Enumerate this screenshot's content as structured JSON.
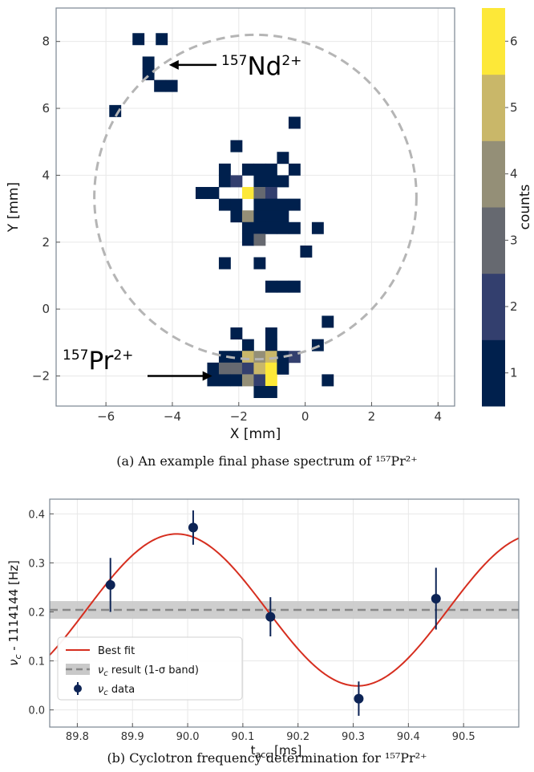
{
  "chart_data": [
    {
      "type": "heatmap",
      "caption": "(a) An example final phase spectrum of ¹⁵⁷Pr²⁺",
      "xlabel": "X [mm]",
      "ylabel": "Y [mm]",
      "xlim": [
        -7.5,
        4.5
      ],
      "ylim": [
        -2.9,
        9.0
      ],
      "xticks": [
        -6,
        -4,
        -2,
        0,
        2,
        4
      ],
      "yticks": [
        -2,
        0,
        2,
        4,
        6,
        8
      ],
      "bin_size": 0.35,
      "colorbar": {
        "label": "counts",
        "ticks": [
          1,
          2,
          3,
          4,
          5,
          6
        ],
        "colors": [
          "#00204d",
          "#333f6e",
          "#666970",
          "#948f77",
          "#c9b769",
          "#fde838"
        ]
      },
      "circle": {
        "center": [
          -1.5,
          3.35
        ],
        "radius": 4.85
      },
      "annotations": [
        {
          "text": "Nd",
          "mass": "157",
          "charge": "2+",
          "point": [
            -4.1,
            7.3
          ]
        },
        {
          "text": "Pr",
          "mass": "157",
          "charge": "2+",
          "point": [
            -2.8,
            -2.0
          ]
        }
      ],
      "cells": [
        [
          -5.2,
          7.9,
          1
        ],
        [
          -4.5,
          7.9,
          1
        ],
        [
          -4.9,
          7.2,
          1
        ],
        [
          -4.9,
          6.85,
          1
        ],
        [
          -4.55,
          6.5,
          1
        ],
        [
          -4.2,
          6.5,
          1
        ],
        [
          -5.9,
          5.75,
          1
        ],
        [
          -0.5,
          5.4,
          1
        ],
        [
          -2.25,
          4.7,
          1
        ],
        [
          -0.85,
          4.35,
          1
        ],
        [
          -2.6,
          4.0,
          1
        ],
        [
          -1.9,
          4.0,
          1
        ],
        [
          -1.55,
          4.0,
          1
        ],
        [
          -1.2,
          4.0,
          1
        ],
        [
          -0.5,
          4.0,
          1
        ],
        [
          -2.6,
          3.65,
          1
        ],
        [
          -2.25,
          3.65,
          2
        ],
        [
          -1.55,
          3.65,
          1
        ],
        [
          -1.2,
          3.65,
          1
        ],
        [
          -0.85,
          3.65,
          1
        ],
        [
          -3.3,
          3.3,
          1
        ],
        [
          -2.95,
          3.3,
          1
        ],
        [
          -1.9,
          3.3,
          6
        ],
        [
          -1.55,
          3.3,
          3
        ],
        [
          -1.2,
          3.3,
          2
        ],
        [
          -2.6,
          2.95,
          1
        ],
        [
          -2.25,
          2.95,
          1
        ],
        [
          -1.55,
          2.95,
          1
        ],
        [
          -1.2,
          2.95,
          1
        ],
        [
          -0.85,
          2.95,
          1
        ],
        [
          -0.5,
          2.95,
          1
        ],
        [
          -2.25,
          2.6,
          1
        ],
        [
          -1.9,
          2.6,
          4
        ],
        [
          -1.55,
          2.6,
          1
        ],
        [
          -1.2,
          2.6,
          1
        ],
        [
          -0.85,
          2.6,
          1
        ],
        [
          -1.9,
          2.25,
          1
        ],
        [
          -1.55,
          2.25,
          1
        ],
        [
          -1.2,
          2.25,
          1
        ],
        [
          -0.85,
          2.25,
          1
        ],
        [
          -0.5,
          2.25,
          1
        ],
        [
          0.2,
          2.25,
          1
        ],
        [
          -1.9,
          1.9,
          1
        ],
        [
          -1.55,
          1.9,
          3
        ],
        [
          -0.15,
          1.55,
          1
        ],
        [
          -2.6,
          1.2,
          1
        ],
        [
          -1.55,
          1.2,
          1
        ],
        [
          -1.2,
          0.5,
          1
        ],
        [
          -0.85,
          0.5,
          1
        ],
        [
          -0.5,
          0.5,
          1
        ],
        [
          0.5,
          -0.55,
          1
        ],
        [
          -2.25,
          -0.9,
          1
        ],
        [
          -1.2,
          -0.9,
          1
        ],
        [
          -1.9,
          -1.25,
          1
        ],
        [
          -1.2,
          -1.25,
          1
        ],
        [
          0.2,
          -1.25,
          1
        ],
        [
          -2.6,
          -1.6,
          1
        ],
        [
          -2.25,
          -1.6,
          1
        ],
        [
          -1.9,
          -1.6,
          5
        ],
        [
          -1.55,
          -1.6,
          4
        ],
        [
          -1.2,
          -1.6,
          5
        ],
        [
          -0.85,
          -1.6,
          1
        ],
        [
          -0.5,
          -1.6,
          2
        ],
        [
          -2.95,
          -1.95,
          1
        ],
        [
          -2.6,
          -1.95,
          3
        ],
        [
          -2.25,
          -1.95,
          3
        ],
        [
          -1.9,
          -1.95,
          2
        ],
        [
          -1.55,
          -1.95,
          5
        ],
        [
          -1.2,
          -1.95,
          6
        ],
        [
          -0.85,
          -1.95,
          1
        ],
        [
          -2.95,
          -2.3,
          1
        ],
        [
          -2.6,
          -2.3,
          1
        ],
        [
          -2.25,
          -2.3,
          1
        ],
        [
          -1.9,
          -2.3,
          4
        ],
        [
          -1.55,
          -2.3,
          2
        ],
        [
          -1.2,
          -2.3,
          6
        ],
        [
          0.5,
          -2.3,
          1
        ],
        [
          -1.55,
          -2.65,
          1
        ],
        [
          -1.2,
          -2.65,
          1
        ]
      ]
    },
    {
      "type": "scatter",
      "caption": "(b) Cyclotron frequency determination for ¹⁵⁷Pr²⁺",
      "xlabel_main": "t",
      "xlabel_sub": "acc",
      "xlabel_unit": " [ms]",
      "ylabel_main": "ν",
      "ylabel_sub": "c",
      "ylabel_rest": " - 1114144 [Hz]",
      "xlim": [
        89.75,
        90.6
      ],
      "ylim": [
        -0.035,
        0.43
      ],
      "xticks": [
        89.8,
        89.9,
        90.0,
        90.1,
        90.2,
        90.3,
        90.4,
        90.5
      ],
      "yticks": [
        0.0,
        0.1,
        0.2,
        0.3,
        0.4
      ],
      "series": [
        {
          "name": "Best fit",
          "kind": "sine",
          "color": "#d62e1f",
          "params": {
            "offset": 0.204,
            "amplitude": 0.155,
            "x0": 89.98,
            "period": 0.655
          }
        },
        {
          "name": "result",
          "kind": "band",
          "color": "#888888",
          "value": 0.204,
          "low": 0.186,
          "high": 0.222
        },
        {
          "name": "data",
          "kind": "points",
          "color": "#0d2456",
          "x": [
            89.86,
            90.01,
            90.15,
            90.31,
            90.45
          ],
          "y": [
            0.255,
            0.372,
            0.19,
            0.023,
            0.227
          ],
          "err": [
            0.055,
            0.035,
            0.04,
            0.035,
            0.063
          ]
        }
      ],
      "legend": [
        {
          "kind": "line",
          "color": "#d62e1f",
          "text": "Best fit"
        },
        {
          "kind": "band",
          "color": "#888888",
          "sym": "ν",
          "sub": "c",
          "text": " result (1-σ band)"
        },
        {
          "kind": "point",
          "color": "#0d2456",
          "sym": "ν",
          "sub": "c",
          "text": " data"
        }
      ]
    }
  ]
}
